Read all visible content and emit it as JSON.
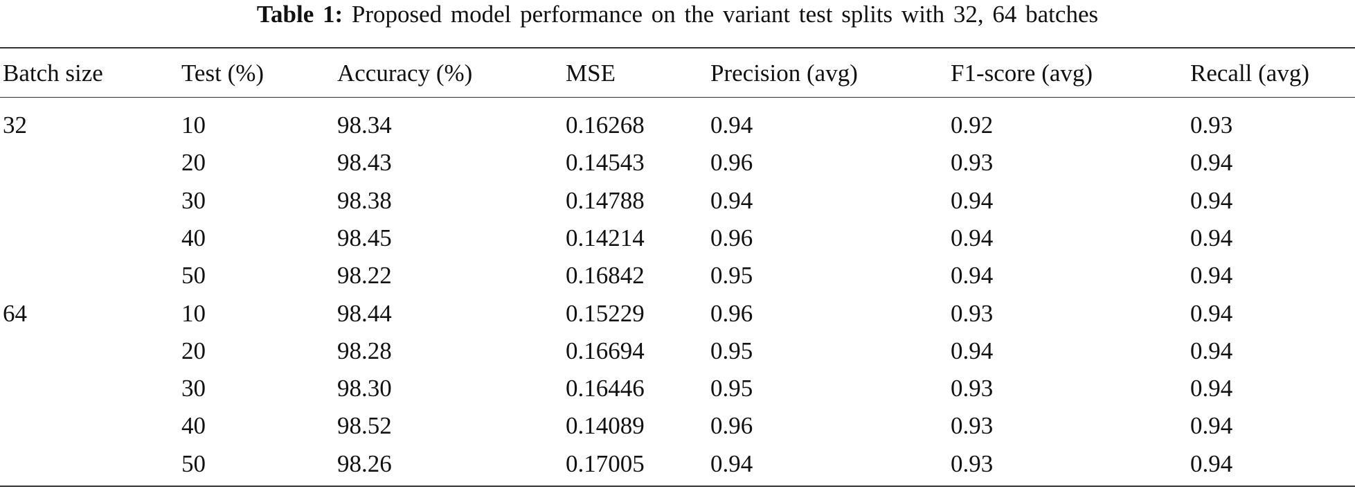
{
  "caption": {
    "label": "Table 1:",
    "text": "Proposed model performance on the variant test splits with 32, 64 batches"
  },
  "table": {
    "headers": [
      "Batch size",
      "Test (%)",
      "Accuracy (%)",
      "MSE",
      "Precision (avg)",
      "F1-score (avg)",
      "Recall (avg)"
    ],
    "groups": [
      {
        "batch": "32",
        "rows": [
          [
            "10",
            "98.34",
            "0.16268",
            "0.94",
            "0.92",
            "0.93"
          ],
          [
            "20",
            "98.43",
            "0.14543",
            "0.96",
            "0.93",
            "0.94"
          ],
          [
            "30",
            "98.38",
            "0.14788",
            "0.94",
            "0.94",
            "0.94"
          ],
          [
            "40",
            "98.45",
            "0.14214",
            "0.96",
            "0.94",
            "0.94"
          ],
          [
            "50",
            "98.22",
            "0.16842",
            "0.95",
            "0.94",
            "0.94"
          ]
        ]
      },
      {
        "batch": "64",
        "rows": [
          [
            "10",
            "98.44",
            "0.15229",
            "0.96",
            "0.93",
            "0.94"
          ],
          [
            "20",
            "98.28",
            "0.16694",
            "0.95",
            "0.94",
            "0.94"
          ],
          [
            "30",
            "98.30",
            "0.16446",
            "0.95",
            "0.93",
            "0.94"
          ],
          [
            "40",
            "98.52",
            "0.14089",
            "0.96",
            "0.93",
            "0.94"
          ],
          [
            "50",
            "98.26",
            "0.17005",
            "0.94",
            "0.93",
            "0.94"
          ]
        ]
      }
    ]
  }
}
